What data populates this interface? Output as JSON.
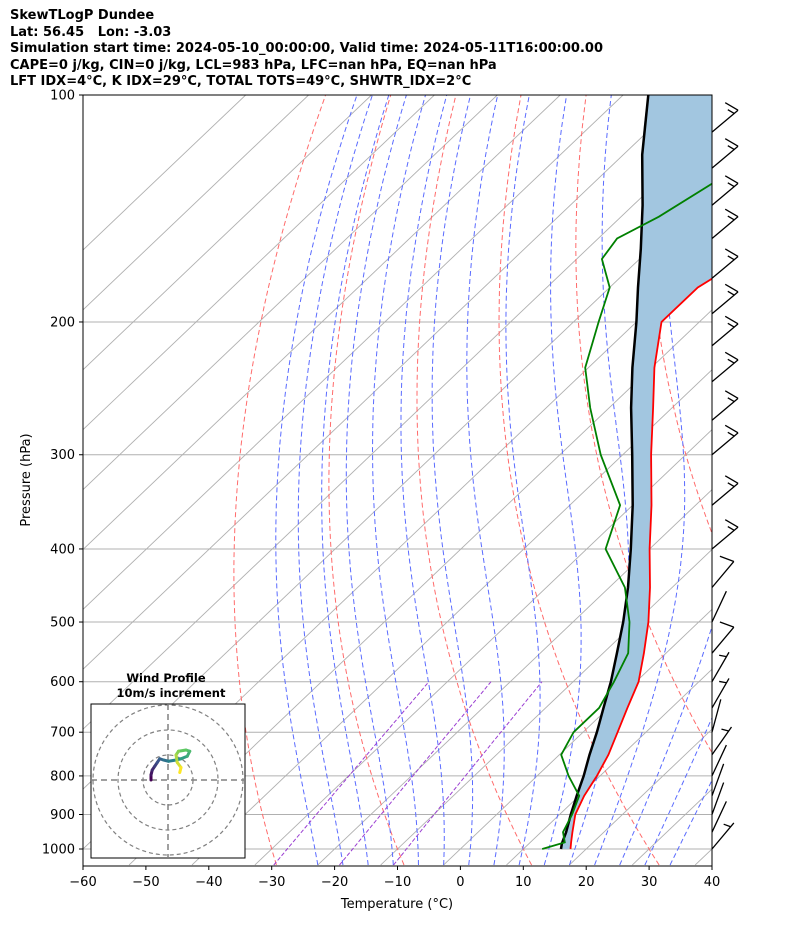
{
  "header": {
    "line1": "SkewTLogP Dundee",
    "line2": "Lat: 56.45   Lon: -3.03",
    "line3": "Simulation start time: 2024-05-10_00:00:00, Valid time: 2024-05-11T16:00:00.00",
    "line4": "CAPE=0 j/kg, CIN=0 j/kg, LCL=983 hPa, LFC=nan hPa, EQ=nan hPa",
    "line5": "LFT IDX=4°C, K IDX=29°C, TOTAL TOTS=49°C, SHWTR_IDX=2°C"
  },
  "chart_data": [
    {
      "type": "line",
      "subtype": "skew-T log-P diagram",
      "xlabel": "Temperature (°C)",
      "ylabel": "Pressure (hPa)",
      "xlim": [
        -60,
        40
      ],
      "ylim": [
        1050,
        100
      ],
      "y_scale": "log",
      "x_ticks": [
        "−60",
        "−50",
        "−40",
        "−30",
        "−20",
        "−10",
        "0",
        "10",
        "20",
        "30",
        "40"
      ],
      "y_ticks": [
        "100",
        "200",
        "300",
        "400",
        "500",
        "600",
        "700",
        "800",
        "900",
        "1000"
      ],
      "grid": true,
      "colors": {
        "temperature": "#ff0000",
        "dewpoint": "#008000",
        "parcel": "#000000",
        "cin_shading": "#a2c6e0",
        "dry_adiabats": "#ff6b6b",
        "moist_adiabats": "#5a6bff",
        "mixing_ratio": "#9b3fd2",
        "isotherms": "#b0b0b0"
      },
      "series": [
        {
          "key": "temperature",
          "points": [
            [
              1000,
              17.5
            ],
            [
              980,
              16.5
            ],
            [
              950,
              15.0
            ],
            [
              900,
              12.5
            ],
            [
              850,
              10.8
            ],
            [
              800,
              9.5
            ],
            [
              750,
              7.8
            ],
            [
              700,
              5.5
            ],
            [
              650,
              3.0
            ],
            [
              600,
              0.4
            ],
            [
              550,
              -3.5
            ],
            [
              500,
              -8.0
            ],
            [
              450,
              -13.5
            ],
            [
              400,
              -20.0
            ],
            [
              350,
              -27.0
            ],
            [
              300,
              -35.5
            ],
            [
              260,
              -43.0
            ],
            [
              230,
              -49.5
            ],
            [
              200,
              -56.0
            ],
            [
              180,
              -56.0
            ],
            [
              160,
              -52.5
            ],
            [
              140,
              -47.5
            ],
            [
              125,
              -44.5
            ],
            [
              115,
              -45.0
            ],
            [
              100,
              -47.0
            ]
          ]
        },
        {
          "key": "dewpoint",
          "points": [
            [
              1000,
              13.0
            ],
            [
              980,
              15.5
            ],
            [
              950,
              13.5
            ],
            [
              900,
              12.0
            ],
            [
              850,
              10.0
            ],
            [
              800,
              5.0
            ],
            [
              750,
              0.3
            ],
            [
              700,
              -1.5
            ],
            [
              650,
              -1.5
            ],
            [
              600,
              -3.5
            ],
            [
              550,
              -6.0
            ],
            [
              500,
              -11.0
            ],
            [
              450,
              -17.5
            ],
            [
              400,
              -27.0
            ],
            [
              350,
              -32.0
            ],
            [
              300,
              -43.5
            ],
            [
              260,
              -53.0
            ],
            [
              230,
              -60.5
            ],
            [
              200,
              -66.0
            ],
            [
              180,
              -70.0
            ],
            [
              165,
              -76.0
            ],
            [
              155,
              -77.0
            ],
            [
              145,
              -74.0
            ],
            [
              120,
              -68.5
            ],
            [
              100,
              -65.0
            ]
          ]
        },
        {
          "key": "parcel",
          "points": [
            [
              1000,
              16.0
            ],
            [
              983,
              15.2
            ],
            [
              950,
              14.0
            ],
            [
              900,
              11.8
            ],
            [
              850,
              9.6
            ],
            [
              800,
              7.4
            ],
            [
              750,
              4.8
            ],
            [
              700,
              2.2
            ],
            [
              650,
              -0.8
            ],
            [
              600,
              -4.0
            ],
            [
              550,
              -7.8
            ],
            [
              500,
              -12.0
            ],
            [
              450,
              -17.0
            ],
            [
              400,
              -23.0
            ],
            [
              350,
              -30.0
            ],
            [
              300,
              -38.5
            ],
            [
              260,
              -46.5
            ],
            [
              230,
              -53.0
            ],
            [
              200,
              -60.0
            ],
            [
              180,
              -65.5
            ],
            [
              160,
              -71.5
            ],
            [
              140,
              -78.5
            ],
            [
              120,
              -87.0
            ],
            [
              100,
              -96.0
            ]
          ]
        }
      ],
      "wind_barbs": [
        [
          1000,
          40,
          5
        ],
        [
          950,
          25,
          0
        ],
        [
          900,
          20,
          0
        ],
        [
          850,
          20,
          0
        ],
        [
          800,
          25,
          0
        ],
        [
          750,
          35,
          5
        ],
        [
          700,
          15,
          0
        ],
        [
          650,
          30,
          5
        ],
        [
          600,
          30,
          5
        ],
        [
          550,
          40,
          10
        ],
        [
          500,
          25,
          0
        ],
        [
          450,
          40,
          10
        ],
        [
          400,
          50,
          15
        ],
        [
          350,
          50,
          15
        ],
        [
          300,
          50,
          15
        ],
        [
          270,
          50,
          15
        ],
        [
          240,
          50,
          15
        ],
        [
          215,
          50,
          15
        ],
        [
          195,
          50,
          15
        ],
        [
          175,
          50,
          15
        ],
        [
          155,
          50,
          15
        ],
        [
          140,
          50,
          15
        ],
        [
          125,
          50,
          15
        ],
        [
          112,
          50,
          15
        ]
      ]
    },
    {
      "type": "scatter",
      "subtype": "hodograph",
      "title": "Wind Profile",
      "subtitle": "10m/s increment",
      "rings_ms": [
        10,
        20,
        30
      ],
      "points": [
        [
          -2.0,
          0.0
        ],
        [
          -2.0,
          2.0
        ],
        [
          -1.5,
          4.0
        ],
        [
          -0.5,
          5.5
        ],
        [
          0.5,
          7.0
        ],
        [
          1.5,
          8.5
        ],
        [
          3.0,
          8.0
        ],
        [
          5.0,
          7.5
        ],
        [
          8.0,
          8.0
        ],
        [
          10.0,
          8.5
        ],
        [
          12.5,
          9.5
        ],
        [
          13.5,
          11.5
        ],
        [
          12.0,
          12.0
        ],
        [
          9.0,
          11.5
        ],
        [
          8.0,
          10.0
        ],
        [
          8.5,
          7.0
        ],
        [
          10.0,
          5.0
        ],
        [
          9.5,
          3.0
        ]
      ]
    }
  ]
}
